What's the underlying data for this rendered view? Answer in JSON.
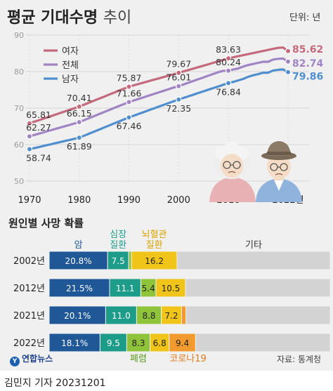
{
  "header": {
    "title_main": "평균 기대수명",
    "title_sub": "추이",
    "unit": "단위: 년"
  },
  "life_chart_colors": {
    "female": "#c46a7c",
    "total": "#a184c4",
    "male": "#4f8fcf"
  },
  "bar_chart_colors": {
    "cancer": "#1f5797",
    "heart": "#1e9c8a",
    "pneumonia": "#8fc33a",
    "cerebro": "#f0c419",
    "covid": "#f29a2e",
    "other": "#d3d3d3"
  },
  "cause_section": {
    "title": "원인별 사망 확률",
    "header_labels": {
      "cancer": "암",
      "heart": "심장\n질환",
      "cerebro": "뇌혈관\n질환",
      "other": "기타"
    },
    "bottom_labels": {
      "pneumonia": "폐렴",
      "covid": "코로나19"
    }
  },
  "source": "자료: 통계청",
  "logo_text": "연합뉴스",
  "byline": "김민지 기자  20231201",
  "chart_data": [
    {
      "type": "line",
      "x": [
        1970,
        1971,
        1972,
        1973,
        1974,
        1975,
        1976,
        1977,
        1978,
        1979,
        1980,
        1981,
        1982,
        1983,
        1984,
        1985,
        1986,
        1987,
        1988,
        1989,
        1990,
        1991,
        1992,
        1993,
        1994,
        1995,
        1996,
        1997,
        1998,
        1999,
        2000,
        2001,
        2002,
        2003,
        2004,
        2005,
        2006,
        2007,
        2008,
        2009,
        2010,
        2011,
        2012,
        2013,
        2014,
        2015,
        2016,
        2017,
        2018,
        2019,
        2020,
        2021,
        2022
      ],
      "x_tick_labels": [
        "1970",
        "1980",
        "1990",
        "2000",
        "2010",
        "2022년"
      ],
      "x_ticks": [
        1970,
        1980,
        1990,
        2000,
        2010,
        2022
      ],
      "ylim": [
        50,
        90
      ],
      "y_ticks": [
        50,
        60,
        70,
        80,
        90
      ],
      "grid": true,
      "legend_position": "top-left",
      "series": [
        {
          "name": "여자",
          "color_key": "female",
          "values": [
            65.81,
            66.28,
            66.74,
            67.2,
            67.66,
            68.12,
            68.58,
            69.03,
            69.49,
            69.95,
            70.41,
            70.96,
            71.5,
            72.05,
            72.6,
            73.14,
            73.69,
            74.24,
            74.78,
            75.33,
            75.87,
            76.25,
            76.63,
            77.0,
            77.38,
            77.76,
            78.14,
            78.52,
            78.9,
            79.27,
            79.67,
            80.06,
            80.45,
            80.84,
            81.23,
            81.62,
            82.02,
            82.42,
            82.82,
            83.22,
            83.63,
            83.92,
            84.21,
            84.5,
            84.79,
            85.08,
            85.37,
            85.66,
            85.95,
            86.24,
            86.5,
            86.6,
            85.62
          ],
          "labels": [
            {
              "i": 0,
              "text": "65.81"
            },
            {
              "i": 10,
              "text": "70.41"
            },
            {
              "i": 20,
              "text": "75.87"
            },
            {
              "i": 30,
              "text": "79.67"
            },
            {
              "i": 40,
              "text": "83.63"
            },
            {
              "i": 52,
              "text": "85.62",
              "bold": true
            }
          ]
        },
        {
          "name": "전체",
          "color_key": "total",
          "values": [
            62.27,
            62.66,
            63.04,
            63.43,
            63.82,
            64.21,
            64.6,
            64.98,
            65.37,
            65.76,
            66.15,
            66.7,
            67.26,
            67.81,
            68.36,
            68.92,
            69.47,
            70.02,
            70.57,
            71.12,
            71.66,
            72.1,
            72.54,
            72.98,
            73.42,
            73.87,
            74.31,
            74.75,
            75.19,
            75.63,
            76.01,
            76.5,
            76.98,
            77.46,
            77.94,
            78.43,
            78.91,
            79.39,
            79.87,
            80.24,
            80.24,
            80.6,
            80.87,
            81.4,
            81.8,
            82.1,
            82.4,
            82.7,
            82.7,
            83.3,
            83.5,
            83.6,
            82.74
          ],
          "labels": [
            {
              "i": 0,
              "text": "62.27"
            },
            {
              "i": 10,
              "text": "66.15"
            },
            {
              "i": 20,
              "text": "71.66"
            },
            {
              "i": 30,
              "text": "76.01"
            },
            {
              "i": 40,
              "text": "80.24"
            },
            {
              "i": 52,
              "text": "82.74",
              "bold": true
            }
          ]
        },
        {
          "name": "남자",
          "color_key": "male",
          "values": [
            58.74,
            59.06,
            59.37,
            59.69,
            60.0,
            60.32,
            60.63,
            60.95,
            61.26,
            61.58,
            61.89,
            62.45,
            63.0,
            63.56,
            64.12,
            64.68,
            65.23,
            65.79,
            66.35,
            66.9,
            67.46,
            67.95,
            68.44,
            68.93,
            69.42,
            69.91,
            70.4,
            70.89,
            71.38,
            71.87,
            72.35,
            72.8,
            73.25,
            73.7,
            74.15,
            74.6,
            75.05,
            75.5,
            75.95,
            76.4,
            76.84,
            77.2,
            77.6,
            78.0,
            78.6,
            79.0,
            79.3,
            79.7,
            79.7,
            80.3,
            80.5,
            80.6,
            79.86
          ],
          "labels": [
            {
              "i": 0,
              "text": "58.74"
            },
            {
              "i": 10,
              "text": "61.89"
            },
            {
              "i": 20,
              "text": "67.46"
            },
            {
              "i": 30,
              "text": "72.35"
            },
            {
              "i": 40,
              "text": "76.84"
            },
            {
              "i": 52,
              "text": "79.86",
              "bold": true
            }
          ]
        }
      ]
    },
    {
      "type": "bar",
      "orientation": "horizontal",
      "stacked": true,
      "title": "원인별 사망 확률",
      "categories": [
        "2002년",
        "2012년",
        "2021년",
        "2022년"
      ],
      "series": [
        {
          "name": "암",
          "color_key": "cancer",
          "values": [
            20.8,
            21.5,
            20.1,
            18.1
          ],
          "labels": [
            "20.8%",
            "21.5%",
            "20.1%",
            "18.1%"
          ]
        },
        {
          "name": "심장 질환",
          "color_key": "heart",
          "values": [
            7.5,
            11.1,
            11.0,
            9.5
          ],
          "labels": [
            "7.5",
            "11.1",
            "11.0",
            "9.5"
          ]
        },
        {
          "name": "폐렴",
          "color_key": "pneumonia",
          "values": [
            1.0,
            5.4,
            8.8,
            8.3
          ],
          "labels": [
            "",
            "5.4",
            "8.8",
            "8.3"
          ]
        },
        {
          "name": "뇌혈관 질환",
          "color_key": "cerebro",
          "values": [
            16.2,
            10.5,
            7.2,
            6.8
          ],
          "labels": [
            "16.2",
            "10.5",
            "7.2",
            "6.8"
          ]
        },
        {
          "name": "코로나19",
          "color_key": "covid",
          "values": [
            0,
            0,
            1.6,
            9.4
          ],
          "labels": [
            "",
            "",
            "1.6",
            "9.4"
          ]
        },
        {
          "name": "기타",
          "color_key": "other",
          "values": [
            54.5,
            51.5,
            51.3,
            47.9
          ],
          "labels": [
            "",
            "",
            "",
            ""
          ]
        }
      ]
    }
  ]
}
